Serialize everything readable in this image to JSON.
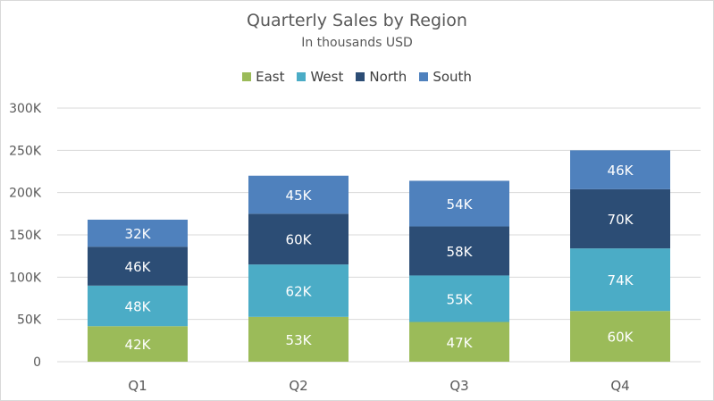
{
  "chart_data": {
    "type": "bar",
    "stacked": true,
    "title": "Quarterly Sales by Region",
    "subtitle": "In thousands USD",
    "categories": [
      "Q1",
      "Q2",
      "Q3",
      "Q4"
    ],
    "series": [
      {
        "name": "East",
        "color": "#9BBB59",
        "values": [
          42,
          53,
          47,
          60
        ]
      },
      {
        "name": "West",
        "color": "#4BACC6",
        "values": [
          48,
          62,
          55,
          74
        ]
      },
      {
        "name": "North",
        "color": "#2C4D75",
        "values": [
          46,
          60,
          58,
          70
        ]
      },
      {
        "name": "South",
        "color": "#4F81BD",
        "values": [
          32,
          45,
          54,
          46
        ]
      }
    ],
    "data_label_suffix": "K",
    "ylim": [
      0,
      300
    ],
    "yticks": [
      0,
      50,
      100,
      150,
      200,
      250,
      300
    ],
    "ytick_labels": [
      "0",
      "50K",
      "100K",
      "150K",
      "200K",
      "250K",
      "300K"
    ],
    "grid": true,
    "legend_position": "top"
  }
}
